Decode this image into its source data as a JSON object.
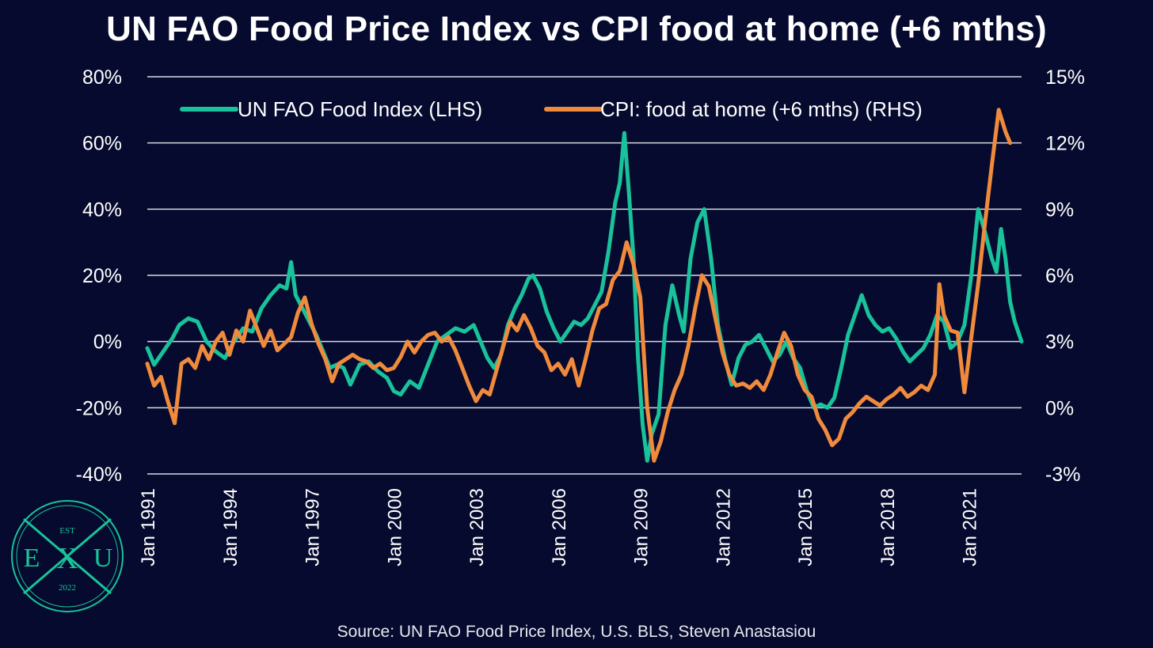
{
  "title": "UN FAO Food Price Index vs CPI food at home (+6 mths)",
  "source": "Source: UN FAO Food Price Index, U.S. BLS, Steven Anastasiou",
  "logo": {
    "top_text": "EST",
    "left_letter": "E",
    "center_letter": "X",
    "right_letter": "U",
    "bottom_text": "2022",
    "color": "#19c29a"
  },
  "colors": {
    "background": "#050a2e",
    "grid": "#d9d9e0",
    "text": "#ffffff"
  },
  "chart_data": {
    "type": "line",
    "title": "UN FAO Food Price Index vs CPI food at home (+6 mths)",
    "legend_position": "top-center",
    "grid": true,
    "x_ticks": [
      "Jan 1991",
      "Jan 1994",
      "Jan 1997",
      "Jan 2000",
      "Jan 2003",
      "Jan 2006",
      "Jan 2009",
      "Jan 2012",
      "Jan 2015",
      "Jan 2018",
      "Jan 2021"
    ],
    "x_range": [
      "1991-01",
      "2022-12"
    ],
    "y_left": {
      "range": [
        -40,
        80
      ],
      "ticks": [
        -40,
        -20,
        0,
        20,
        40,
        60,
        80
      ],
      "tick_labels": [
        "-40%",
        "-20%",
        "0%",
        "20%",
        "40%",
        "60%",
        "80%"
      ]
    },
    "y_right": {
      "range": [
        -3,
        15
      ],
      "ticks": [
        -3,
        0,
        3,
        6,
        9,
        12,
        15
      ],
      "tick_labels": [
        "-3%",
        "0%",
        "3%",
        "6%",
        "9%",
        "12%",
        "15%"
      ]
    },
    "series": [
      {
        "name": "UN FAO Food Index (LHS)",
        "axis": "left",
        "color": "#19c29a",
        "points": [
          [
            "1991-01",
            -2
          ],
          [
            "1991-04",
            -7
          ],
          [
            "1991-08",
            -3
          ],
          [
            "1991-12",
            1
          ],
          [
            "1992-03",
            5
          ],
          [
            "1992-07",
            7
          ],
          [
            "1992-11",
            6
          ],
          [
            "1993-03",
            0
          ],
          [
            "1993-07",
            -3
          ],
          [
            "1993-11",
            -5
          ],
          [
            "1994-03",
            0
          ],
          [
            "1994-07",
            4
          ],
          [
            "1994-11",
            3
          ],
          [
            "1995-03",
            10
          ],
          [
            "1995-07",
            14
          ],
          [
            "1995-11",
            17
          ],
          [
            "1996-02",
            16
          ],
          [
            "1996-04",
            24
          ],
          [
            "1996-06",
            14
          ],
          [
            "1996-09",
            10
          ],
          [
            "1996-12",
            6
          ],
          [
            "1997-03",
            2
          ],
          [
            "1997-06",
            -3
          ],
          [
            "1997-09",
            -8
          ],
          [
            "1997-12",
            -7
          ],
          [
            "1998-03",
            -8
          ],
          [
            "1998-06",
            -13
          ],
          [
            "1998-10",
            -7
          ],
          [
            "1999-02",
            -6
          ],
          [
            "1999-06",
            -9
          ],
          [
            "1999-10",
            -11
          ],
          [
            "2000-01",
            -15
          ],
          [
            "2000-04",
            -16
          ],
          [
            "2000-08",
            -12
          ],
          [
            "2000-12",
            -14
          ],
          [
            "2001-04",
            -7
          ],
          [
            "2001-08",
            0
          ],
          [
            "2001-12",
            2
          ],
          [
            "2002-04",
            4
          ],
          [
            "2002-08",
            3
          ],
          [
            "2002-12",
            5
          ],
          [
            "2003-03",
            0
          ],
          [
            "2003-06",
            -5
          ],
          [
            "2003-09",
            -8
          ],
          [
            "2003-12",
            -4
          ],
          [
            "2004-03",
            5
          ],
          [
            "2004-06",
            10
          ],
          [
            "2004-09",
            14
          ],
          [
            "2004-12",
            19
          ],
          [
            "2005-02",
            20
          ],
          [
            "2005-05",
            16
          ],
          [
            "2005-08",
            9
          ],
          [
            "2005-11",
            4
          ],
          [
            "2006-02",
            0
          ],
          [
            "2006-05",
            3
          ],
          [
            "2006-08",
            6
          ],
          [
            "2006-11",
            5
          ],
          [
            "2007-02",
            7
          ],
          [
            "2007-05",
            11
          ],
          [
            "2007-08",
            15
          ],
          [
            "2007-11",
            27
          ],
          [
            "2008-02",
            42
          ],
          [
            "2008-04",
            48
          ],
          [
            "2008-06",
            63
          ],
          [
            "2008-08",
            45
          ],
          [
            "2008-10",
            25
          ],
          [
            "2008-12",
            -5
          ],
          [
            "2009-02",
            -25
          ],
          [
            "2009-04",
            -36
          ],
          [
            "2009-06",
            -28
          ],
          [
            "2009-09",
            -22
          ],
          [
            "2009-12",
            5
          ],
          [
            "2010-03",
            17
          ],
          [
            "2010-06",
            8
          ],
          [
            "2010-08",
            3
          ],
          [
            "2010-11",
            25
          ],
          [
            "2011-02",
            36
          ],
          [
            "2011-05",
            40
          ],
          [
            "2011-08",
            25
          ],
          [
            "2011-11",
            5
          ],
          [
            "2012-02",
            -5
          ],
          [
            "2012-05",
            -13
          ],
          [
            "2012-08",
            -5
          ],
          [
            "2012-11",
            -1
          ],
          [
            "2013-02",
            0
          ],
          [
            "2013-05",
            2
          ],
          [
            "2013-08",
            -2
          ],
          [
            "2013-11",
            -6
          ],
          [
            "2014-02",
            -4
          ],
          [
            "2014-05",
            0
          ],
          [
            "2014-08",
            -5
          ],
          [
            "2014-11",
            -8
          ],
          [
            "2015-02",
            -15
          ],
          [
            "2015-05",
            -20
          ],
          [
            "2015-08",
            -19
          ],
          [
            "2015-11",
            -20
          ],
          [
            "2016-02",
            -17
          ],
          [
            "2016-05",
            -8
          ],
          [
            "2016-08",
            2
          ],
          [
            "2016-11",
            8
          ],
          [
            "2017-02",
            14
          ],
          [
            "2017-05",
            8
          ],
          [
            "2017-08",
            5
          ],
          [
            "2017-11",
            3
          ],
          [
            "2018-02",
            4
          ],
          [
            "2018-05",
            1
          ],
          [
            "2018-08",
            -3
          ],
          [
            "2018-11",
            -6
          ],
          [
            "2019-02",
            -4
          ],
          [
            "2019-05",
            -2
          ],
          [
            "2019-08",
            2
          ],
          [
            "2019-11",
            8
          ],
          [
            "2020-02",
            6
          ],
          [
            "2020-05",
            -2
          ],
          [
            "2020-08",
            0
          ],
          [
            "2020-11",
            5
          ],
          [
            "2021-02",
            20
          ],
          [
            "2021-05",
            40
          ],
          [
            "2021-08",
            33
          ],
          [
            "2021-11",
            25
          ],
          [
            "2022-01",
            21
          ],
          [
            "2022-03",
            34
          ],
          [
            "2022-05",
            25
          ],
          [
            "2022-07",
            12
          ],
          [
            "2022-09",
            6
          ],
          [
            "2022-12",
            0
          ]
        ]
      },
      {
        "name": "CPI: food at home (+6 mths) (RHS)",
        "axis": "right",
        "color": "#f08a3c",
        "points": [
          [
            "1991-01",
            2.0
          ],
          [
            "1991-04",
            1.0
          ],
          [
            "1991-07",
            1.4
          ],
          [
            "1991-10",
            0.3
          ],
          [
            "1992-01",
            -0.7
          ],
          [
            "1992-04",
            2.0
          ],
          [
            "1992-07",
            2.2
          ],
          [
            "1992-10",
            1.8
          ],
          [
            "1993-01",
            2.8
          ],
          [
            "1993-04",
            2.2
          ],
          [
            "1993-07",
            3.0
          ],
          [
            "1993-10",
            3.4
          ],
          [
            "1994-01",
            2.4
          ],
          [
            "1994-04",
            3.5
          ],
          [
            "1994-07",
            3.0
          ],
          [
            "1994-10",
            4.4
          ],
          [
            "1995-01",
            3.6
          ],
          [
            "1995-04",
            2.8
          ],
          [
            "1995-07",
            3.5
          ],
          [
            "1995-10",
            2.6
          ],
          [
            "1996-01",
            2.9
          ],
          [
            "1996-04",
            3.2
          ],
          [
            "1996-07",
            4.3
          ],
          [
            "1996-10",
            5.0
          ],
          [
            "1997-01",
            3.8
          ],
          [
            "1997-04",
            2.9
          ],
          [
            "1997-07",
            2.2
          ],
          [
            "1997-10",
            1.2
          ],
          [
            "1998-01",
            2.0
          ],
          [
            "1998-04",
            2.2
          ],
          [
            "1998-07",
            2.4
          ],
          [
            "1998-10",
            2.2
          ],
          [
            "1999-01",
            2.1
          ],
          [
            "1999-04",
            1.8
          ],
          [
            "1999-07",
            2.0
          ],
          [
            "1999-10",
            1.7
          ],
          [
            "2000-01",
            1.8
          ],
          [
            "2000-04",
            2.3
          ],
          [
            "2000-07",
            3.0
          ],
          [
            "2000-10",
            2.5
          ],
          [
            "2001-01",
            3.0
          ],
          [
            "2001-04",
            3.3
          ],
          [
            "2001-07",
            3.4
          ],
          [
            "2001-10",
            3.0
          ],
          [
            "2002-01",
            3.2
          ],
          [
            "2002-04",
            2.6
          ],
          [
            "2002-07",
            1.8
          ],
          [
            "2002-10",
            1.0
          ],
          [
            "2003-01",
            0.3
          ],
          [
            "2003-04",
            0.8
          ],
          [
            "2003-07",
            0.6
          ],
          [
            "2003-10",
            1.7
          ],
          [
            "2004-01",
            2.8
          ],
          [
            "2004-04",
            3.9
          ],
          [
            "2004-07",
            3.5
          ],
          [
            "2004-10",
            4.2
          ],
          [
            "2005-01",
            3.6
          ],
          [
            "2005-04",
            2.8
          ],
          [
            "2005-07",
            2.5
          ],
          [
            "2005-10",
            1.7
          ],
          [
            "2006-01",
            2.0
          ],
          [
            "2006-04",
            1.5
          ],
          [
            "2006-07",
            2.2
          ],
          [
            "2006-10",
            1.0
          ],
          [
            "2007-01",
            2.2
          ],
          [
            "2007-04",
            3.5
          ],
          [
            "2007-07",
            4.5
          ],
          [
            "2007-10",
            4.7
          ],
          [
            "2008-01",
            5.8
          ],
          [
            "2008-04",
            6.2
          ],
          [
            "2008-07",
            7.5
          ],
          [
            "2008-10",
            6.5
          ],
          [
            "2009-01",
            5.0
          ],
          [
            "2009-04",
            0.0
          ],
          [
            "2009-07",
            -2.4
          ],
          [
            "2009-10",
            -1.5
          ],
          [
            "2010-01",
            -0.2
          ],
          [
            "2010-04",
            0.8
          ],
          [
            "2010-07",
            1.5
          ],
          [
            "2010-10",
            2.8
          ],
          [
            "2011-01",
            4.5
          ],
          [
            "2011-04",
            6.0
          ],
          [
            "2011-07",
            5.5
          ],
          [
            "2011-10",
            4.0
          ],
          [
            "2012-01",
            2.5
          ],
          [
            "2012-04",
            1.5
          ],
          [
            "2012-07",
            1.0
          ],
          [
            "2012-10",
            1.1
          ],
          [
            "2013-01",
            0.9
          ],
          [
            "2013-04",
            1.2
          ],
          [
            "2013-07",
            0.8
          ],
          [
            "2013-10",
            1.5
          ],
          [
            "2014-01",
            2.5
          ],
          [
            "2014-04",
            3.4
          ],
          [
            "2014-07",
            2.8
          ],
          [
            "2014-10",
            1.5
          ],
          [
            "2015-01",
            0.8
          ],
          [
            "2015-04",
            0.5
          ],
          [
            "2015-07",
            -0.5
          ],
          [
            "2015-10",
            -1.0
          ],
          [
            "2016-01",
            -1.7
          ],
          [
            "2016-04",
            -1.4
          ],
          [
            "2016-07",
            -0.5
          ],
          [
            "2016-10",
            -0.2
          ],
          [
            "2017-01",
            0.2
          ],
          [
            "2017-04",
            0.5
          ],
          [
            "2017-07",
            0.3
          ],
          [
            "2017-10",
            0.1
          ],
          [
            "2018-01",
            0.4
          ],
          [
            "2018-04",
            0.6
          ],
          [
            "2018-07",
            0.9
          ],
          [
            "2018-10",
            0.5
          ],
          [
            "2019-01",
            0.7
          ],
          [
            "2019-04",
            1.0
          ],
          [
            "2019-07",
            0.8
          ],
          [
            "2019-10",
            1.5
          ],
          [
            "2019-12",
            5.6
          ],
          [
            "2020-02",
            4.2
          ],
          [
            "2020-05",
            3.5
          ],
          [
            "2020-08",
            3.4
          ],
          [
            "2020-11",
            0.7
          ],
          [
            "2021-02",
            3.2
          ],
          [
            "2021-05",
            5.6
          ],
          [
            "2021-08",
            8.4
          ],
          [
            "2021-11",
            11.0
          ],
          [
            "2022-02",
            13.5
          ],
          [
            "2022-05",
            12.5
          ],
          [
            "2022-07",
            12.0
          ]
        ]
      }
    ]
  }
}
